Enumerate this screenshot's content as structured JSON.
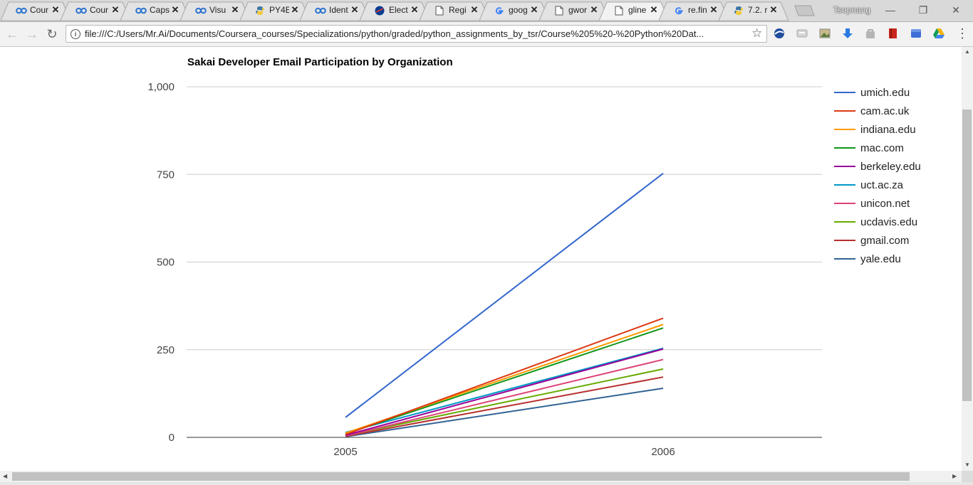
{
  "browser": {
    "tabs": [
      {
        "title": "Cour",
        "icon": "coursera-icon",
        "active": false
      },
      {
        "title": "Cour",
        "icon": "coursera-icon",
        "active": false
      },
      {
        "title": "Caps",
        "icon": "coursera-icon",
        "active": false
      },
      {
        "title": "Visu",
        "icon": "coursera-icon",
        "active": false
      },
      {
        "title": "PY4E",
        "icon": "python-icon",
        "active": false
      },
      {
        "title": "Ident",
        "icon": "coursera-icon",
        "active": false
      },
      {
        "title": "Elect",
        "icon": "nasa-icon",
        "active": false
      },
      {
        "title": "Regi",
        "icon": "document-icon",
        "active": false
      },
      {
        "title": "goog",
        "icon": "google-icon",
        "active": false
      },
      {
        "title": "gwor",
        "icon": "document-icon",
        "active": false
      },
      {
        "title": "gline",
        "icon": "document-icon",
        "active": true
      },
      {
        "title": "re.fin",
        "icon": "google-icon",
        "active": false
      },
      {
        "title": "7.2. r",
        "icon": "python-icon",
        "active": false
      }
    ],
    "profile_name": "Tsopnang",
    "close_glyph": "✕",
    "window_buttons": {
      "minimize": "—",
      "restore": "❐",
      "close": "✕"
    },
    "nav": {
      "back": "←",
      "forward": "→",
      "reload": "↻"
    },
    "url": "file:///C:/Users/Mr.Ai/Documents/Coursera_courses/Specializations/python/graded/python_assignments_by_tsr/Course%205%20-%20Python%20Dat...",
    "info_glyph": "i",
    "star_glyph": "☆",
    "menu_glyph": "⋮",
    "extensions": [
      "blue-globe-icon",
      "grey-cast-icon",
      "photo-icon",
      "download-icon",
      "bag-icon",
      "red-book-icon",
      "blue-box-icon",
      "drive-icon"
    ]
  },
  "chart_data": {
    "type": "line",
    "title": "Sakai Developer Email Participation by Organization",
    "categories": [
      "2005",
      "2006"
    ],
    "ylim": [
      0,
      1000
    ],
    "yticks": [
      "0",
      "250",
      "500",
      "750",
      "1,000"
    ],
    "ytick_values": [
      0,
      250,
      500,
      750,
      1000
    ],
    "grid": true,
    "legend_position": "right",
    "series": [
      {
        "name": "umich.edu",
        "color": "#3366cc",
        "values": [
          57,
          753
        ]
      },
      {
        "name": "cam.ac.uk",
        "color": "#dc3912",
        "values": [
          8,
          340
        ]
      },
      {
        "name": "indiana.edu",
        "color": "#ff9900",
        "values": [
          12,
          322
        ]
      },
      {
        "name": "mac.com",
        "color": "#109618",
        "values": [
          10,
          312
        ]
      },
      {
        "name": "berkeley.edu",
        "color": "#990099",
        "values": [
          6,
          252
        ]
      },
      {
        "name": "uct.ac.za",
        "color": "#0099c6",
        "values": [
          14,
          254
        ]
      },
      {
        "name": "unicon.net",
        "color": "#dd4477",
        "values": [
          4,
          222
        ]
      },
      {
        "name": "ucdavis.edu",
        "color": "#66aa00",
        "values": [
          5,
          195
        ]
      },
      {
        "name": "gmail.com",
        "color": "#b82e2e",
        "values": [
          3,
          172
        ]
      },
      {
        "name": "yale.edu",
        "color": "#316395",
        "values": [
          2,
          140
        ]
      }
    ]
  }
}
